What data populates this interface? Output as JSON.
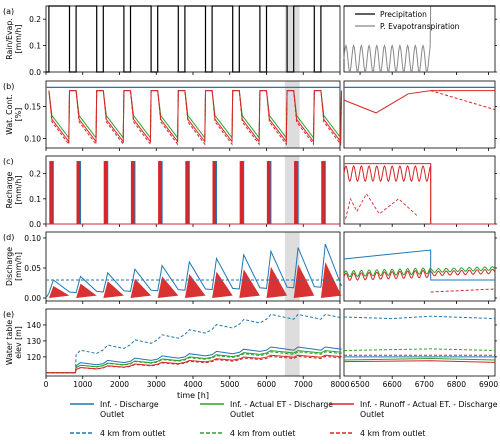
{
  "chart_data": [
    {
      "panel": "(a)",
      "type": "line",
      "ylabel": "Rain/Evap.\n[mm/h]",
      "yticks": [
        "0.0",
        "0.1",
        "0.2"
      ],
      "ylim": [
        0,
        0.25
      ],
      "xlim": [
        0,
        8000
      ],
      "series": [
        {
          "name": "Precipitation",
          "color": "#000000",
          "pattern": "square wave 0 / 0.25, period ~750 h"
        },
        {
          "name": "P. Evapotranspiration",
          "color": "#888888",
          "pattern": "diurnal sinusoid 0–0.1 during dry periods"
        }
      ],
      "zoom_xlim": [
        6450,
        6920
      ]
    },
    {
      "panel": "(b)",
      "type": "line",
      "ylabel": "Wat. Cont.\n[%]",
      "yticks": [
        "0.10",
        "0.15"
      ],
      "ylim": [
        0.085,
        0.19
      ],
      "xlim": [
        0,
        8000
      ],
      "zoom_xlim": [
        6450,
        6920
      ]
    },
    {
      "panel": "(c)",
      "type": "line",
      "ylabel": "Recharge\n[mm/h]",
      "yticks": [
        "0.0",
        "0.1",
        "0.2"
      ],
      "ylim": [
        0,
        0.27
      ],
      "xlim": [
        0,
        8000
      ],
      "zoom_xlim": [
        6450,
        6920
      ]
    },
    {
      "panel": "(d)",
      "type": "line",
      "ylabel": "Discharge\n[mm/h]",
      "yticks": [
        "0.00",
        "0.05",
        "0.10"
      ],
      "ylim": [
        -0.005,
        0.11
      ],
      "xlim": [
        0,
        8000
      ],
      "zoom_xlim": [
        6450,
        6920
      ]
    },
    {
      "panel": "(e)",
      "type": "line",
      "ylabel": "Water table\nelev [m]",
      "xlabel": "time [h]",
      "yticks": [
        "120",
        "130",
        "140"
      ],
      "ylim": [
        108,
        150
      ],
      "xlim": [
        0,
        8000
      ],
      "xticks": [
        "0",
        "1000",
        "2000",
        "3000",
        "4000",
        "5000",
        "6000",
        "7000",
        "8000"
      ],
      "zoom_xlim": [
        6450,
        6920
      ],
      "zoom_xticks": [
        "6500",
        "6600",
        "6700",
        "6800",
        "6900"
      ]
    }
  ],
  "legend": {
    "items": [
      {
        "label": "Inf. - Discharge\nOutlet",
        "color": "#1f77b4",
        "style": "solid"
      },
      {
        "label": "Inf. - Actual ET - Discharge\nOutlet",
        "color": "#2ca02c",
        "style": "solid"
      },
      {
        "label": "Inf. - Runoff - Actual ET. - Discharge\nOutlet",
        "color": "#d62728",
        "style": "solid"
      },
      {
        "label": "4 km from outlet",
        "color": "#1f77b4",
        "style": "dashed"
      },
      {
        "label": "4 km from outlet",
        "color": "#2ca02c",
        "style": "dashed"
      },
      {
        "label": "4 km from outlet",
        "color": "#d62728",
        "style": "dashed"
      }
    ]
  },
  "colors": {
    "blue": "#1f77b4",
    "green": "#2ca02c",
    "red": "#d62728",
    "black": "#000000",
    "gray": "#888888",
    "highlight": "#d9d9d9"
  }
}
